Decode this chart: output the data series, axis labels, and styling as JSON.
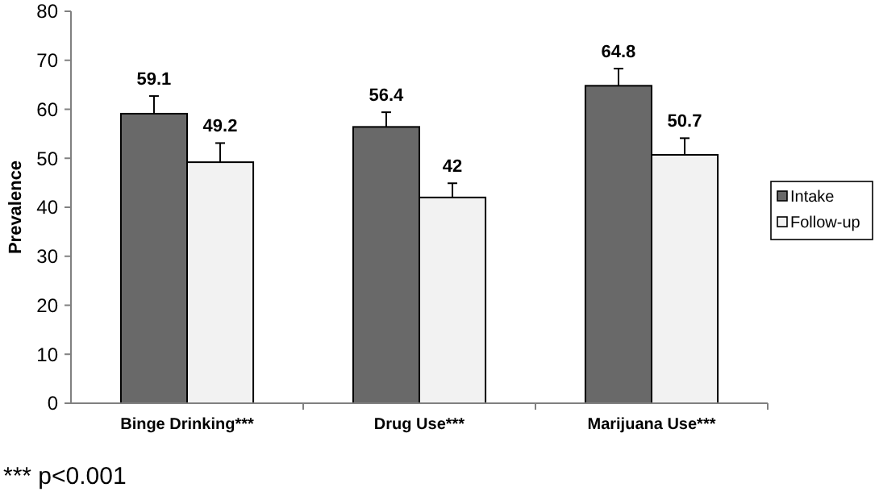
{
  "chart_data": {
    "type": "bar",
    "ylabel": "Prevalence",
    "categories": [
      "Binge Drinking***",
      "Drug Use***",
      "Marijuana Use***"
    ],
    "series": [
      {
        "name": "Intake",
        "color": "#696969",
        "values": [
          59.1,
          56.4,
          64.8
        ],
        "errors": [
          [
            59.1,
            62.7
          ],
          [
            56.4,
            59.4
          ],
          [
            64.8,
            68.3
          ]
        ]
      },
      {
        "name": "Follow-up",
        "color": "#f2f2f2",
        "values": [
          49.2,
          42,
          50.7
        ],
        "errors": [
          [
            49.2,
            53.1
          ],
          [
            42,
            44.9
          ],
          [
            50.7,
            54.1
          ]
        ]
      }
    ],
    "ylim": [
      0,
      80
    ],
    "yticks": [
      0,
      10,
      20,
      30,
      40,
      50,
      60,
      70,
      80
    ],
    "data_labels": true,
    "legend": "right",
    "grid": false,
    "annotations": [
      "*** p<0.001"
    ]
  }
}
